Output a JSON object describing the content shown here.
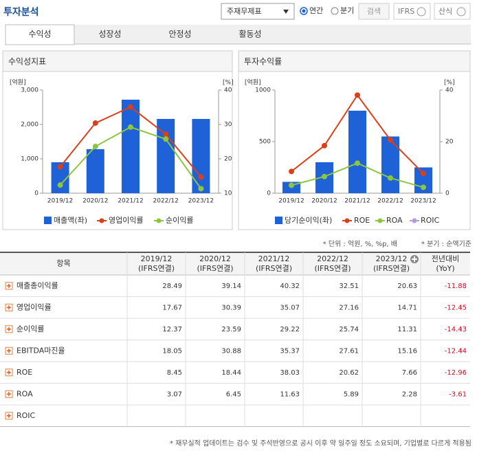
{
  "ui": {
    "title": "투자분석",
    "select": "주재무제표",
    "radios": [
      "연간",
      "분기"
    ],
    "buttons": [
      "검색",
      "IFRS",
      "산식"
    ],
    "tabs": [
      "수익성",
      "성장성",
      "안정성",
      "활동성"
    ],
    "notes": [
      "* 단위 : 억원, %, %p, 배",
      "* 분기 : 순액기준"
    ],
    "footer": "* 재무실적 업데이트는 검수 및 주석반영으로 공시 이후 약 일주일 정도 소요되며, 기업별로 다르게 적용됨"
  },
  "chart_data": [
    {
      "type": "combo",
      "title": "수익성지표",
      "y_label": "[억원]",
      "y2_label": "[%]",
      "categories": [
        "2019/12",
        "2020/12",
        "2021/12",
        "2022/12",
        "2023/12"
      ],
      "ylim": [
        0,
        3000
      ],
      "yticks": [
        0,
        {
          "value": 1000,
          "label": "1,000"
        },
        {
          "value": 2000,
          "label": "2,000"
        },
        {
          "value": 3000,
          "label": "3,000"
        }
      ],
      "y2lim": [
        10,
        40
      ],
      "y2ticks": [
        10,
        20,
        30,
        40
      ],
      "series": [
        {
          "name": "매출액(좌)",
          "type": "bar",
          "color": "#1f62d8",
          "values": [
            900,
            1280,
            2720,
            2160,
            2160
          ]
        },
        {
          "name": "영업이익률",
          "type": "line",
          "axis": "y2",
          "color": "#d9401a",
          "values": [
            17.67,
            30.39,
            35.07,
            27.16,
            14.71
          ]
        },
        {
          "name": "순이익률",
          "type": "line",
          "axis": "y2",
          "color": "#8cc63f",
          "values": [
            12.37,
            23.59,
            29.22,
            25.74,
            11.31
          ]
        }
      ]
    },
    {
      "type": "combo",
      "title": "투자수익률",
      "y_label": "[억원]",
      "y2_label": "[%]",
      "categories": [
        "2019/12",
        "2020/12",
        "2021/12",
        "2022/12",
        "2023/12"
      ],
      "ylim": [
        0,
        1000
      ],
      "yticks": [
        0,
        500,
        1000
      ],
      "y2lim": [
        0,
        40
      ],
      "y2ticks": [
        0,
        20,
        40
      ],
      "series": [
        {
          "name": "당기순이익(좌)",
          "type": "bar",
          "color": "#1f62d8",
          "values": [
            110,
            300,
            800,
            550,
            250
          ]
        },
        {
          "name": "ROE",
          "type": "line",
          "axis": "y2",
          "color": "#d9401a",
          "values": [
            8.45,
            18.44,
            38.03,
            20.62,
            7.66
          ]
        },
        {
          "name": "ROA",
          "type": "line",
          "axis": "y2",
          "color": "#8cc63f",
          "values": [
            3.07,
            6.45,
            11.63,
            5.89,
            2.28
          ]
        },
        {
          "name": "ROIC",
          "type": "line",
          "axis": "y2",
          "color": "#b59ae0",
          "values": [
            null,
            null,
            null,
            null,
            null
          ]
        }
      ]
    }
  ],
  "table": {
    "header": {
      "item": "항목",
      "periods": [
        {
          "date": "2019/12",
          "basis": "(IFRS연결)"
        },
        {
          "date": "2020/12",
          "basis": "(IFRS연결)"
        },
        {
          "date": "2021/12",
          "basis": "(IFRS연결)"
        },
        {
          "date": "2022/12",
          "basis": "(IFRS연결)"
        },
        {
          "date": "2023/12",
          "basis": "(IFRS연결)"
        }
      ],
      "yoy": {
        "label": "전년대비",
        "sub": "(YoY)"
      }
    },
    "rows": [
      {
        "name": "매출총이익률",
        "values": [
          28.49,
          39.14,
          40.32,
          32.51,
          20.63
        ],
        "yoy": -11.88
      },
      {
        "name": "영업이익률",
        "values": [
          17.67,
          30.39,
          35.07,
          27.16,
          14.71
        ],
        "yoy": -12.45
      },
      {
        "name": "순이익률",
        "values": [
          12.37,
          23.59,
          29.22,
          25.74,
          11.31
        ],
        "yoy": -14.43
      },
      {
        "name": "EBITDA마진율",
        "values": [
          18.05,
          30.88,
          35.37,
          27.61,
          15.16
        ],
        "yoy": -12.44
      },
      {
        "name": "ROE",
        "values": [
          8.45,
          18.44,
          38.03,
          20.62,
          7.66
        ],
        "yoy": -12.96
      },
      {
        "name": "ROA",
        "values": [
          3.07,
          6.45,
          11.63,
          5.89,
          2.28
        ],
        "yoy": -3.61
      },
      {
        "name": "ROIC",
        "values": [
          null,
          null,
          null,
          null,
          null
        ],
        "yoy": null
      }
    ]
  }
}
